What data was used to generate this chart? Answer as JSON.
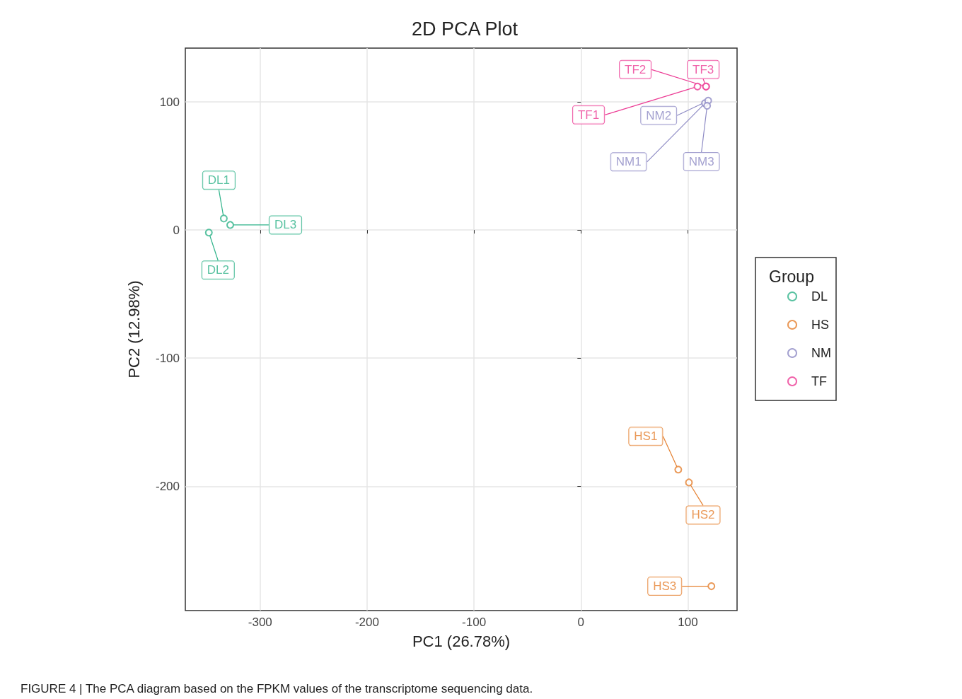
{
  "chart_data": {
    "type": "scatter",
    "title": "2D PCA Plot",
    "xlabel": "PC1 (26.78%)",
    "ylabel": "PC2 (12.98%)",
    "legend_title": "Group",
    "series": [
      {
        "name": "DL",
        "color": "#2fb38a",
        "x": [
          -334,
          -348,
          -328
        ],
        "values": [
          9,
          -2,
          4
        ],
        "value_labels": [
          "DL1",
          "DL2",
          "DL3"
        ]
      },
      {
        "name": "HS",
        "color": "#e57f2e",
        "x": [
          91,
          101,
          122
        ],
        "values": [
          -187,
          -197,
          -278
        ],
        "value_labels": [
          "HS1",
          "HS2",
          "HS3"
        ]
      },
      {
        "name": "NM",
        "color": "#8d8ac4",
        "x": [
          116,
          119,
          118
        ],
        "values": [
          99,
          101,
          97
        ],
        "value_labels": [
          "NM1",
          "NM2",
          "NM3"
        ]
      },
      {
        "name": "TF",
        "color": "#ec3c95",
        "x": [
          109,
          117,
          117
        ],
        "values": [
          112,
          112,
          112
        ],
        "value_labels": [
          "TF1",
          "TF2",
          "TF3"
        ]
      }
    ],
    "xlim": [
      -370,
      146
    ],
    "ylim": [
      -297,
      142
    ],
    "xticks": [
      -300,
      -200,
      -100,
      0,
      100
    ],
    "yticks": [
      -200,
      -100,
      0,
      100
    ],
    "grid": true,
    "legend": "right",
    "marker": "circle",
    "annotations": [
      "FIGURE 4 | The PCA diagram based on the FPKM values of the transcriptome sequencing data."
    ]
  }
}
